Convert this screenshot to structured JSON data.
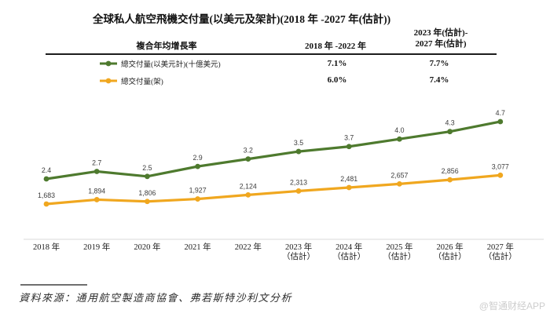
{
  "title": "全球私人航空飛機交付量(以美元及架計)(2018 年 -2027 年(估計))",
  "table": {
    "col1_header": "複合年均增長率",
    "col2_header": "2018 年 -2022 年",
    "col3_header_line1": "2023 年(估計)-",
    "col3_header_line2": "2027 年(估計)",
    "rows": [
      {
        "legend": "總交付量(以美元計)(十億美元)",
        "color": "#4e7a2e",
        "cagr_2018_2022": "7.1%",
        "cagr_2023_2027": "7.7%"
      },
      {
        "legend": "總交付量(架)",
        "color": "#f0a71f",
        "cagr_2018_2022": "6.0%",
        "cagr_2023_2027": "7.4%"
      }
    ]
  },
  "chart_data": {
    "type": "line",
    "title": "全球私人航空飛機交付量(以美元及架計)(2018 年 -2027 年(估計))",
    "categories": [
      {
        "line1": "2018 年",
        "line2": ""
      },
      {
        "line1": "2019 年",
        "line2": ""
      },
      {
        "line1": "2020 年",
        "line2": ""
      },
      {
        "line1": "2021 年",
        "line2": ""
      },
      {
        "line1": "2022 年",
        "line2": ""
      },
      {
        "line1": "2023 年",
        "line2": "（估計）"
      },
      {
        "line1": "2024 年",
        "line2": "（估計）"
      },
      {
        "line1": "2025 年",
        "line2": "（估計）"
      },
      {
        "line1": "2026 年",
        "line2": "（估計）"
      },
      {
        "line1": "2027 年",
        "line2": "（估計）"
      }
    ],
    "series": [
      {
        "name": "總交付量(以美元計)(十億美元)",
        "color": "#4e7a2e",
        "values": [
          2.4,
          2.7,
          2.5,
          2.9,
          3.2,
          3.5,
          3.7,
          4.0,
          4.3,
          4.7
        ],
        "labels": [
          "2.4",
          "2.7",
          "2.5",
          "2.9",
          "3.2",
          "3.5",
          "3.7",
          "4.0",
          "4.3",
          "4.7"
        ],
        "cagr_2018_2022": "7.1%",
        "cagr_2023_2027": "7.7%"
      },
      {
        "name": "總交付量(架)",
        "color": "#f0a71f",
        "values": [
          1683,
          1894,
          1806,
          1927,
          2124,
          2313,
          2481,
          2657,
          2856,
          3077
        ],
        "labels": [
          "1,683",
          "1,894",
          "1,806",
          "1,927",
          "2,124",
          "2,313",
          "2,481",
          "2,657",
          "2,856",
          "3,077"
        ],
        "cagr_2018_2022": "6.0%",
        "cagr_2023_2027": "7.4%"
      }
    ],
    "xlabel": "",
    "ylabel": "",
    "y_axis_visible": false,
    "grid": false,
    "data_labels": true,
    "legend_position": "top-left-table",
    "x_axis_line_color": "#d9d9d9",
    "label_color": "#3c3c3c"
  },
  "source": "資料來源：通用航空製造商協會、弗若斯特沙利文分析",
  "watermark": "@智通财经APP"
}
